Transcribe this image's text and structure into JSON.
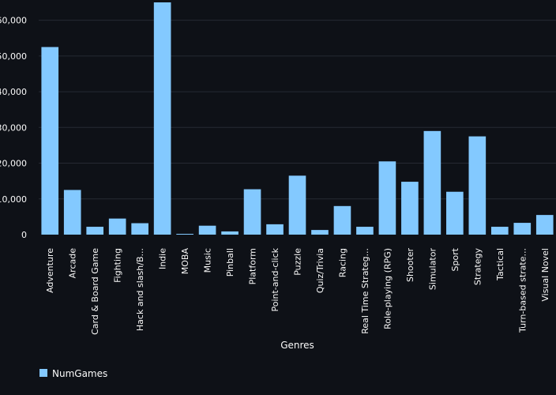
{
  "colors": {
    "background": "#0e1117",
    "bar": "#83c9ff",
    "grid": "#262a33",
    "text": "#fafafa"
  },
  "chart_data": {
    "type": "bar",
    "categories": [
      "Adventure",
      "Arcade",
      "Card & Board Game",
      "Fighting",
      "Hack and slash/B...",
      "Indie",
      "MOBA",
      "Music",
      "Pinball",
      "Platform",
      "Point-and-click",
      "Puzzle",
      "Quiz/Trivia",
      "Racing",
      "Real Time Strateg...",
      "Role-playing (RPG)",
      "Shooter",
      "Simulator",
      "Sport",
      "Strategy",
      "Tactical",
      "Turn-based strate...",
      "Visual Novel"
    ],
    "series": [
      {
        "name": "NumGames",
        "values": [
          52500,
          12500,
          2200,
          4500,
          3200,
          65000,
          200,
          2500,
          900,
          12700,
          2900,
          16500,
          1300,
          8000,
          2200,
          20500,
          14800,
          29000,
          12000,
          27500,
          2200,
          3300,
          5500
        ]
      }
    ],
    "xlabel": "Genres",
    "ylabel": "",
    "ylim": [
      0,
      65000
    ],
    "yticks": [
      0,
      10000,
      20000,
      30000,
      40000,
      50000,
      60000
    ],
    "ytick_labels": [
      "0",
      "10,000",
      "20,000",
      "30,000",
      "40,000",
      "50,000",
      "60,000"
    ],
    "grid": true,
    "legend_position": "bottom-left"
  }
}
